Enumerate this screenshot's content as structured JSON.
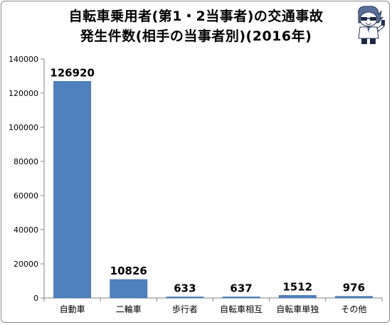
{
  "chart_data": {
    "type": "bar",
    "title_line1": "自転車乗用者(第1・2当事者)の交通事故",
    "title_line2": "発生件数(相手の当事者別)(2016年)",
    "categories": [
      "自動車",
      "二輪車",
      "歩行者",
      "自転車相互",
      "自転車単独",
      "その他"
    ],
    "values": [
      126920,
      10826,
      633,
      637,
      1512,
      976
    ],
    "data_labels": [
      "126920",
      "10826",
      "633",
      "637",
      "1512",
      "976"
    ],
    "ylim": [
      0,
      140000
    ],
    "yticks": [
      0,
      20000,
      40000,
      60000,
      80000,
      100000,
      120000,
      140000
    ],
    "xlabel": "",
    "ylabel": "",
    "grid": false,
    "legend": "none",
    "bar_color": "#4f81bd"
  },
  "colors": {
    "bar": "#4f81bd",
    "bar_edge": "#3d6da6",
    "axis": "#868686",
    "frame": "#8a8a8a"
  },
  "mascot_icon": "mascot-character-icon"
}
